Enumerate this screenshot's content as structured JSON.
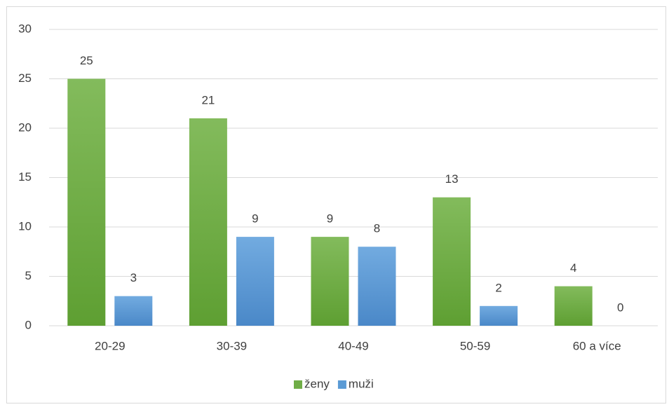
{
  "chart_data": {
    "type": "bar",
    "categories": [
      "20-29",
      "30-39",
      "40-49",
      "50-59",
      "60 a více"
    ],
    "series": [
      {
        "name": "ženy",
        "color": "#70ad47",
        "values": [
          25,
          21,
          9,
          13,
          4
        ]
      },
      {
        "name": "muži",
        "color": "#5b9bd5",
        "values": [
          3,
          9,
          8,
          2,
          0
        ]
      }
    ],
    "ylim": [
      0,
      30
    ],
    "yticks": [
      0,
      5,
      10,
      15,
      20,
      25,
      30
    ],
    "grid": true,
    "legend": "bottom"
  }
}
